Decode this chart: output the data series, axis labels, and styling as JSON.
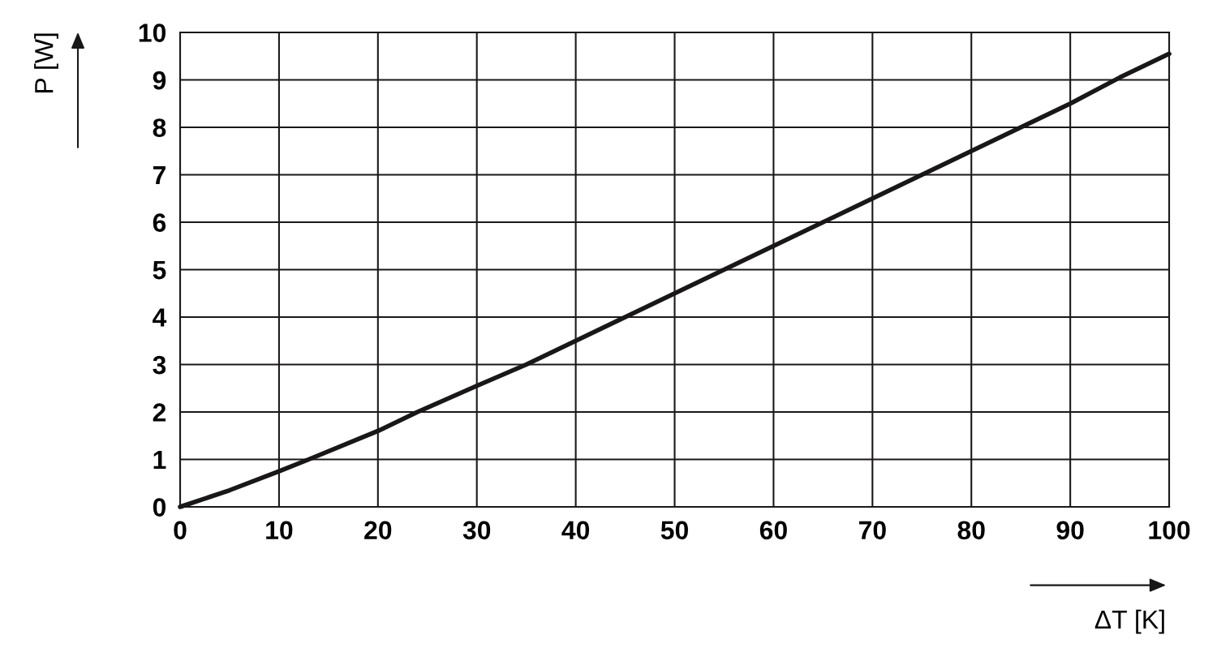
{
  "chart_data": {
    "type": "line",
    "xlabel": "ΔT [K]",
    "ylabel": "P [W]",
    "x": [
      0,
      5,
      10,
      13,
      20,
      24,
      30,
      35,
      40,
      45,
      50,
      55,
      60,
      65,
      70,
      75,
      80,
      85,
      90,
      95,
      100
    ],
    "series": [
      {
        "color": "#1a1718",
        "values": [
          0,
          0.35,
          0.75,
          1.0,
          1.6,
          2.0,
          2.55,
          3.0,
          3.5,
          4.0,
          4.5,
          5.0,
          5.5,
          6.0,
          6.5,
          7.0,
          7.5,
          8.0,
          8.5,
          9.05,
          9.55
        ]
      }
    ],
    "xlim": [
      0,
      100
    ],
    "xticks": [
      0,
      10,
      20,
      30,
      40,
      50,
      60,
      70,
      80,
      90,
      100
    ],
    "ylim": [
      0,
      10
    ],
    "yticks": [
      0,
      1,
      2,
      3,
      4,
      5,
      6,
      7,
      8,
      9,
      10
    ],
    "grid": true,
    "marker": "none",
    "line_style": "solid",
    "legend": false
  }
}
